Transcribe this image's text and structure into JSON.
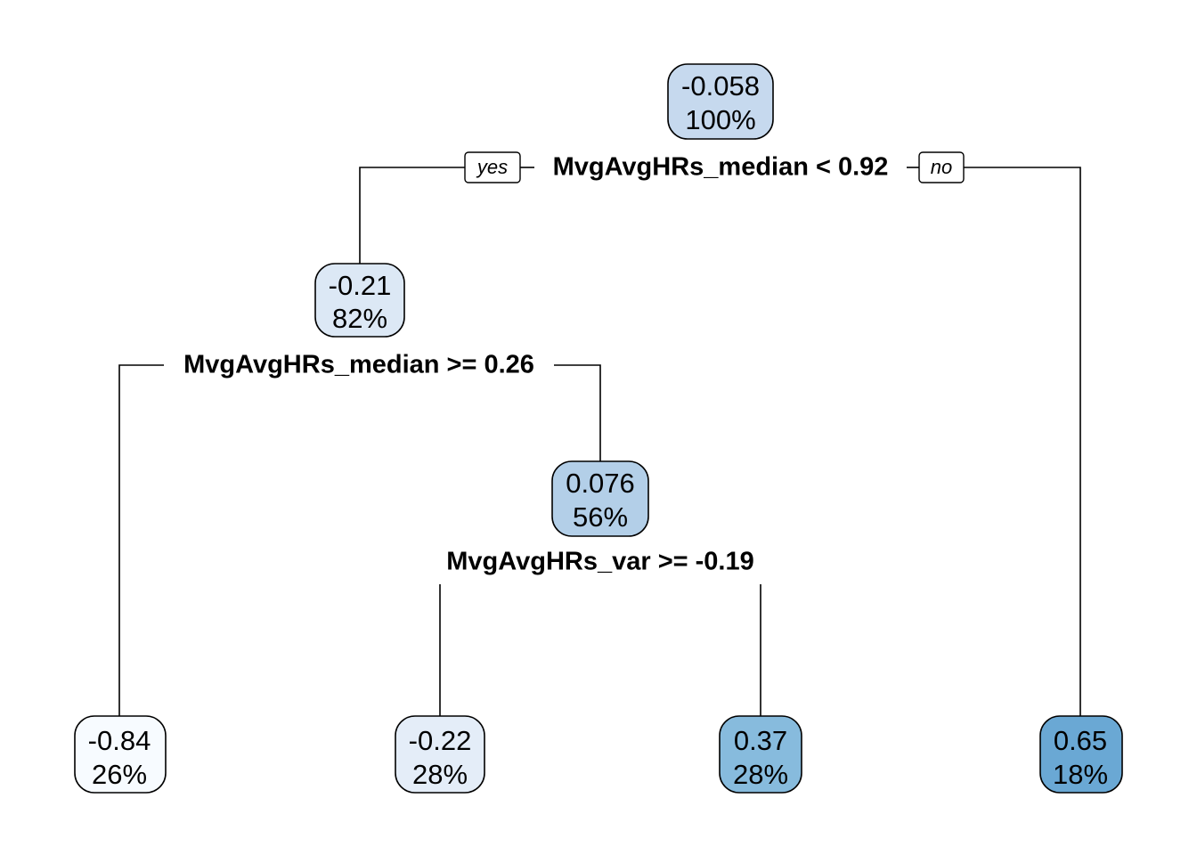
{
  "tree": {
    "nodes": [
      {
        "id": "root",
        "value": "-0.058",
        "percent": "100%",
        "color": "#c6d9ee"
      },
      {
        "id": "n2",
        "value": "-0.21",
        "percent": "82%",
        "color": "#dce8f5"
      },
      {
        "id": "n3",
        "value": "0.076",
        "percent": "56%",
        "color": "#b3cfe8"
      },
      {
        "id": "leaf1",
        "value": "-0.84",
        "percent": "26%",
        "color": "#f7fbff"
      },
      {
        "id": "leaf2",
        "value": "-0.22",
        "percent": "28%",
        "color": "#e4edf8"
      },
      {
        "id": "leaf3",
        "value": "0.37",
        "percent": "28%",
        "color": "#87bbdd"
      },
      {
        "id": "leaf4",
        "value": "0.65",
        "percent": "18%",
        "color": "#6aa8d4"
      }
    ],
    "splits": [
      {
        "id": "s-root",
        "label": "MvgAvgHRs_median < 0.92"
      },
      {
        "id": "s-n2",
        "label": "MvgAvgHRs_median >= 0.26"
      },
      {
        "id": "s-n3",
        "label": "MvgAvgHRs_var >= -0.19"
      }
    ],
    "branch_labels": {
      "yes": "yes",
      "no": "no"
    }
  }
}
